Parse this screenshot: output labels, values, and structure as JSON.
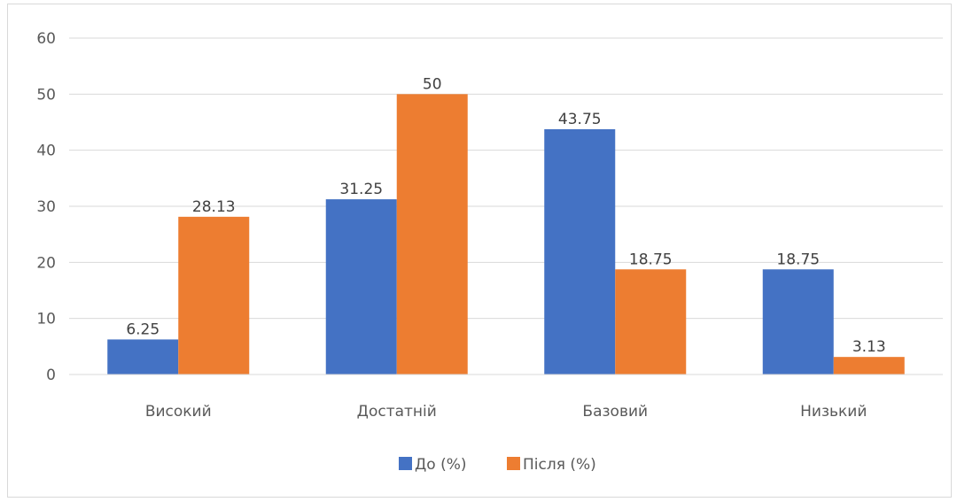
{
  "chart_data": {
    "type": "bar",
    "categories": [
      "Високий",
      "Достатній",
      "Базовий",
      "Низький"
    ],
    "series": [
      {
        "name": "До (%)",
        "color": "#4472C4",
        "values": [
          6.25,
          31.25,
          43.75,
          18.75
        ]
      },
      {
        "name": "Після (%)",
        "color": "#ED7D31",
        "values": [
          28.13,
          50,
          18.75,
          3.13
        ]
      }
    ],
    "ylim": [
      0,
      60
    ],
    "yticks": [
      0,
      10,
      20,
      30,
      40,
      50,
      60
    ],
    "grid": true,
    "legend_position": "bottom"
  }
}
